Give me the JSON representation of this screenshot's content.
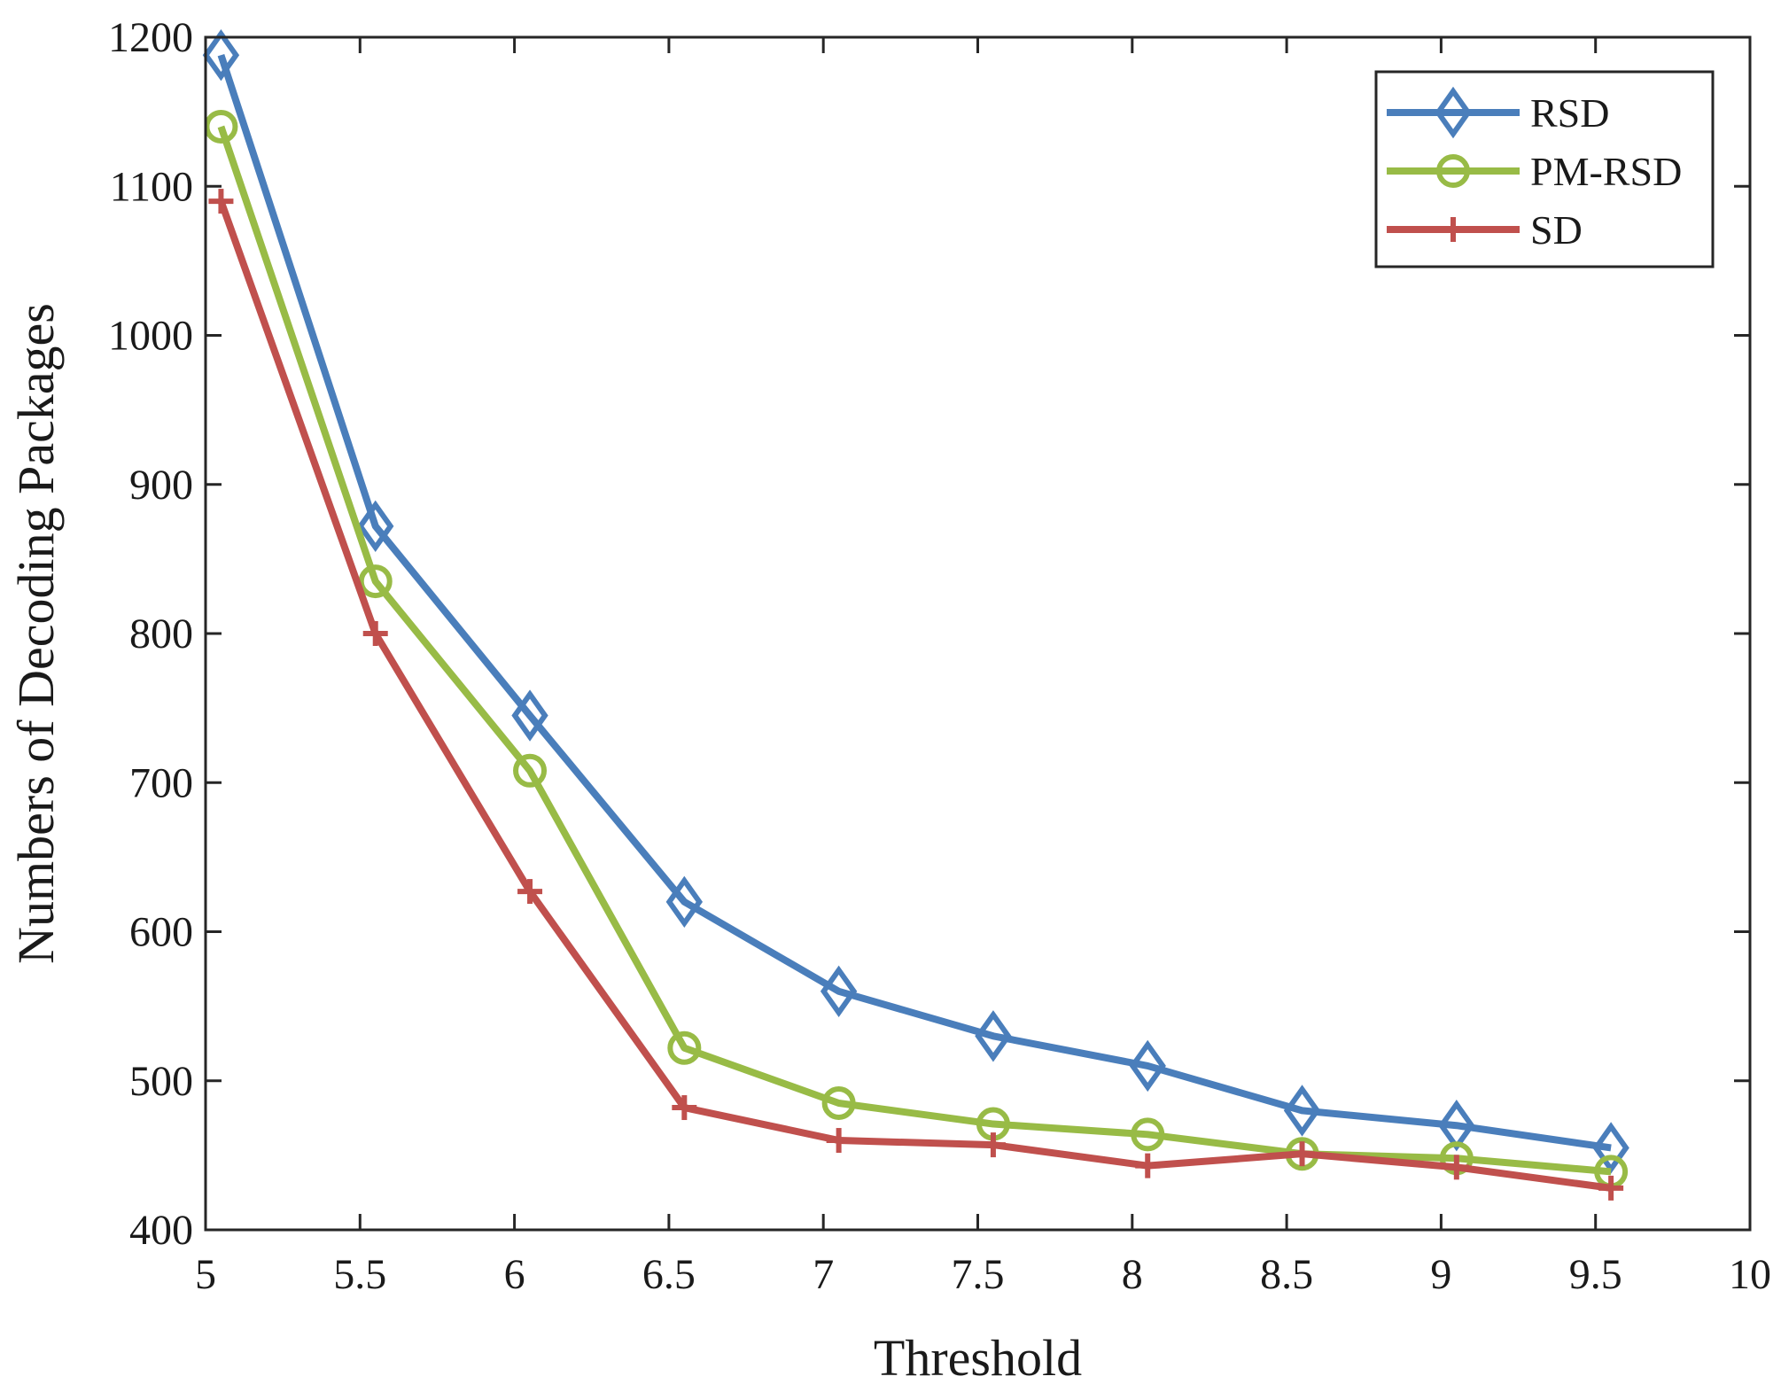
{
  "chart_data": {
    "type": "line",
    "title": "",
    "xlabel": "Threshold",
    "ylabel": "Numbers of Decoding Packages",
    "xlim": [
      5,
      10
    ],
    "ylim": [
      400,
      1200
    ],
    "xticks": [
      5,
      5.5,
      6,
      6.5,
      7,
      7.5,
      8,
      8.5,
      9,
      9.5,
      10
    ],
    "xtick_labels": [
      "5",
      "5.5",
      "6",
      "6.5",
      "7",
      "7.5",
      "8",
      "8.5",
      "9",
      "9.5",
      "10"
    ],
    "yticks": [
      400,
      500,
      600,
      700,
      800,
      900,
      1000,
      1100,
      1200
    ],
    "ytick_labels": [
      "400",
      "500",
      "600",
      "700",
      "800",
      "900",
      "1000",
      "1100",
      "1200"
    ],
    "grid": false,
    "legend_position": "top-right",
    "x": [
      5.05,
      5.55,
      6.05,
      6.55,
      7.05,
      7.55,
      8.05,
      8.55,
      9.05,
      9.55
    ],
    "series": [
      {
        "name": "RSD",
        "color": "#4a7ebb",
        "marker": "diamond",
        "values": [
          1188,
          872,
          745,
          620,
          560,
          530,
          510,
          480,
          470,
          455
        ]
      },
      {
        "name": "PM-RSD",
        "color": "#98bb46",
        "marker": "circle",
        "values": [
          1140,
          835,
          708,
          522,
          485,
          471,
          464,
          451,
          448,
          439
        ]
      },
      {
        "name": "SD",
        "color": "#c0504d",
        "marker": "plus",
        "values": [
          1090,
          800,
          627,
          482,
          460,
          457,
          443,
          451,
          442,
          428
        ]
      }
    ]
  }
}
